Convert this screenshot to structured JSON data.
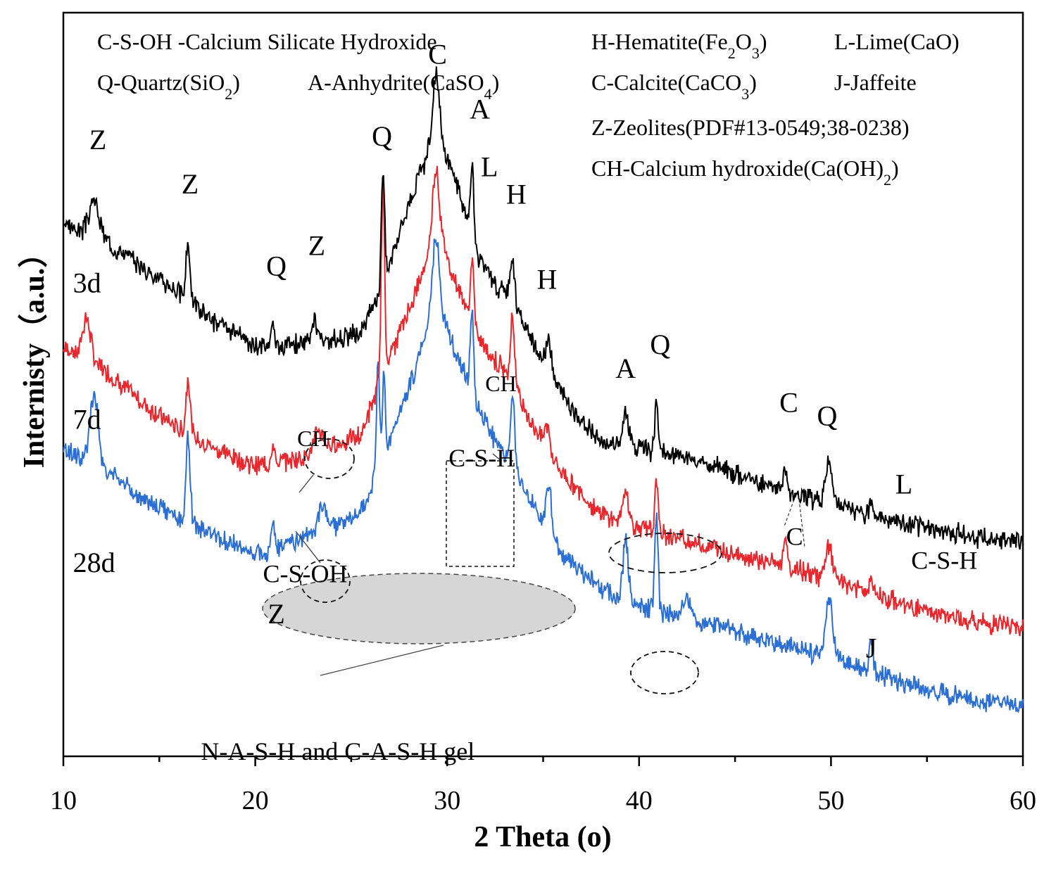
{
  "chart_data": {
    "type": "line",
    "title": "",
    "xlabel": "2 Theta (o)",
    "ylabel": "Internisty（a.u.）",
    "xlim": [
      10,
      60
    ],
    "x_ticks": [
      "10",
      "20",
      "30",
      "40",
      "50",
      "60"
    ],
    "legend_lines": [
      {
        "id": "csoh",
        "parts": [
          {
            "t": "C-S-OH -Calcium Silicate Hydroxide"
          }
        ]
      },
      {
        "id": "hematite",
        "parts": [
          {
            "t": "H-Hematite(Fe"
          },
          {
            "t": "2",
            "sub": true
          },
          {
            "t": "O"
          },
          {
            "t": "3",
            "sub": true
          },
          {
            "t": ")"
          }
        ]
      },
      {
        "id": "lime",
        "parts": [
          {
            "t": "L-Lime(CaO)"
          }
        ]
      },
      {
        "id": "quartz",
        "parts": [
          {
            "t": "Q-Quartz(SiO"
          },
          {
            "t": "2",
            "sub": true
          },
          {
            "t": ")"
          }
        ]
      },
      {
        "id": "anhydrite",
        "parts": [
          {
            "t": "A-Anhydrite(CaSO"
          },
          {
            "t": "4",
            "sub": true
          },
          {
            "t": ")"
          }
        ]
      },
      {
        "id": "calcite",
        "parts": [
          {
            "t": "C-Calcite(CaCO"
          },
          {
            "t": "3",
            "sub": true
          },
          {
            "t": ")"
          }
        ]
      },
      {
        "id": "jaffeite",
        "parts": [
          {
            "t": "J-Jaffeite"
          }
        ]
      },
      {
        "id": "zeolites",
        "parts": [
          {
            "t": "Z-Zeolites(PDF#13-0549;38-0238)"
          }
        ]
      },
      {
        "id": "ch",
        "parts": [
          {
            "t": "CH-Calcium hydroxide(Ca(OH)"
          },
          {
            "t": "2",
            "sub": true
          },
          {
            "t": ")"
          }
        ]
      }
    ],
    "series": [
      {
        "name": "3d",
        "color": "#000000",
        "seed": 3,
        "noise": 0.22,
        "baseline": [
          [
            10,
            5.2
          ],
          [
            12,
            5.0
          ],
          [
            14,
            4.6
          ],
          [
            16,
            4.2
          ],
          [
            18,
            3.75
          ],
          [
            20,
            3.4
          ],
          [
            22,
            3.45
          ],
          [
            24,
            3.5
          ],
          [
            25.5,
            3.6
          ],
          [
            26.5,
            4.2
          ],
          [
            27.5,
            5.1
          ],
          [
            28.5,
            5.9
          ],
          [
            29.5,
            6.5
          ],
          [
            30.5,
            5.8
          ],
          [
            31.5,
            4.8
          ],
          [
            32.5,
            4.3
          ],
          [
            33.5,
            4.1
          ],
          [
            34,
            3.7
          ],
          [
            35,
            3.2
          ],
          [
            36,
            2.7
          ],
          [
            37,
            2.3
          ],
          [
            38,
            2.0
          ],
          [
            40,
            1.9
          ],
          [
            42,
            1.8
          ],
          [
            44,
            1.65
          ],
          [
            46,
            1.45
          ],
          [
            48,
            1.25
          ],
          [
            50,
            1.1
          ],
          [
            52,
            0.95
          ],
          [
            54,
            0.8
          ],
          [
            56,
            0.7
          ],
          [
            58,
            0.6
          ],
          [
            60,
            0.55
          ]
        ],
        "peaks": [
          [
            11.6,
            0.5,
            0.35
          ],
          [
            16.5,
            0.85,
            0.15
          ],
          [
            20.9,
            0.35,
            0.12
          ],
          [
            23.1,
            0.3,
            0.2
          ],
          [
            26.65,
            1.7,
            0.12
          ],
          [
            29.4,
            0.9,
            0.25
          ],
          [
            31.3,
            1.1,
            0.12
          ],
          [
            33.4,
            0.6,
            0.15
          ],
          [
            35.3,
            0.45,
            0.2
          ],
          [
            39.3,
            0.55,
            0.2
          ],
          [
            40.9,
            0.75,
            0.12
          ],
          [
            47.6,
            0.35,
            0.12
          ],
          [
            49.9,
            0.6,
            0.25
          ],
          [
            52.1,
            0.25,
            0.12
          ]
        ]
      },
      {
        "name": "7d",
        "color": "#e8262b",
        "seed": 7,
        "noise": 0.22,
        "baseline": [
          [
            10,
            3.4
          ],
          [
            12,
            3.1
          ],
          [
            14,
            2.6
          ],
          [
            16,
            2.2
          ],
          [
            18,
            1.9
          ],
          [
            20,
            1.65
          ],
          [
            22,
            1.75
          ],
          [
            24,
            1.95
          ],
          [
            25.5,
            2.1
          ],
          [
            26.5,
            2.9
          ],
          [
            27.5,
            3.6
          ],
          [
            28.5,
            4.3
          ],
          [
            29.5,
            5.1
          ],
          [
            30.5,
            4.3
          ],
          [
            31.5,
            3.6
          ],
          [
            32.5,
            3.2
          ],
          [
            33.5,
            2.9
          ],
          [
            34,
            2.5
          ],
          [
            35,
            2.0
          ],
          [
            36,
            1.55
          ],
          [
            38,
            0.95
          ],
          [
            40,
            0.75
          ],
          [
            42,
            0.6
          ],
          [
            44,
            0.45
          ],
          [
            46,
            0.3
          ],
          [
            48,
            0.15
          ],
          [
            50,
            0.0
          ],
          [
            52,
            -0.2
          ],
          [
            54,
            -0.4
          ],
          [
            56,
            -0.55
          ],
          [
            58,
            -0.65
          ],
          [
            60,
            -0.7
          ]
        ],
        "peaks": [
          [
            11.2,
            0.6,
            0.3
          ],
          [
            16.5,
            0.85,
            0.15
          ],
          [
            20.9,
            0.3,
            0.12
          ],
          [
            23.3,
            0.3,
            0.3
          ],
          [
            26.65,
            2.8,
            0.12
          ],
          [
            29.4,
            1.0,
            0.25
          ],
          [
            31.3,
            1.0,
            0.12
          ],
          [
            33.4,
            0.9,
            0.15
          ],
          [
            35.2,
            0.35,
            0.2
          ],
          [
            39.3,
            0.5,
            0.2
          ],
          [
            40.9,
            0.75,
            0.12
          ],
          [
            47.6,
            0.45,
            0.12
          ],
          [
            49.9,
            0.45,
            0.25
          ],
          [
            52.1,
            0.2,
            0.12
          ]
        ]
      },
      {
        "name": "28d",
        "color": "#2b6fd4",
        "seed": 28,
        "noise": 0.22,
        "baseline": [
          [
            10,
            1.9
          ],
          [
            12,
            1.65
          ],
          [
            14,
            1.2
          ],
          [
            16,
            0.9
          ],
          [
            18,
            0.6
          ],
          [
            20,
            0.35
          ],
          [
            22,
            0.55
          ],
          [
            24,
            0.75
          ],
          [
            25.5,
            0.95
          ],
          [
            26.5,
            1.6
          ],
          [
            27.5,
            2.4
          ],
          [
            28.5,
            3.2
          ],
          [
            29.5,
            4.0
          ],
          [
            30.5,
            3.3
          ],
          [
            31.5,
            2.6
          ],
          [
            32.5,
            2.0
          ],
          [
            33.5,
            1.6
          ],
          [
            34,
            1.3
          ],
          [
            35,
            0.8
          ],
          [
            36,
            0.35
          ],
          [
            38,
            -0.15
          ],
          [
            40,
            -0.4
          ],
          [
            42,
            -0.55
          ],
          [
            44,
            -0.7
          ],
          [
            46,
            -0.85
          ],
          [
            48,
            -1.0
          ],
          [
            50,
            -1.15
          ],
          [
            52,
            -1.35
          ],
          [
            54,
            -1.55
          ],
          [
            56,
            -1.7
          ],
          [
            58,
            -1.8
          ],
          [
            60,
            -1.85
          ]
        ],
        "peaks": [
          [
            11.6,
            1.0,
            0.3
          ],
          [
            16.5,
            1.25,
            0.15
          ],
          [
            20.9,
            0.4,
            0.12
          ],
          [
            23.5,
            0.35,
            0.3
          ],
          [
            26.4,
            1.6,
            0.12
          ],
          [
            26.7,
            1.3,
            0.1
          ],
          [
            29.4,
            1.1,
            0.25
          ],
          [
            31.3,
            1.2,
            0.12
          ],
          [
            33.4,
            1.1,
            0.15
          ],
          [
            35.3,
            0.75,
            0.2
          ],
          [
            39.3,
            0.85,
            0.2
          ],
          [
            40.9,
            1.45,
            0.12
          ],
          [
            42.5,
            0.3,
            0.3
          ],
          [
            49.9,
            0.85,
            0.25
          ],
          [
            52.1,
            0.45,
            0.12
          ]
        ]
      }
    ],
    "sample_labels": [
      {
        "text": "3d",
        "x": 10.5,
        "y": 4.2
      },
      {
        "text": "7d",
        "x": 10.5,
        "y": 2.2
      },
      {
        "text": "28d",
        "x": 10.5,
        "y": 0.1
      }
    ],
    "peak_labels": [
      {
        "text": "Z",
        "x": 11.8,
        "y": 6.3
      },
      {
        "text": "Z",
        "x": 16.6,
        "y": 5.65
      },
      {
        "text": "Q",
        "x": 21.1,
        "y": 4.45
      },
      {
        "text": "Z",
        "x": 23.2,
        "y": 4.75
      },
      {
        "text": "Q",
        "x": 26.6,
        "y": 6.35
      },
      {
        "text": "C",
        "x": 29.5,
        "y": 7.55
      },
      {
        "text": "A",
        "x": 31.7,
        "y": 6.75
      },
      {
        "text": "L",
        "x": 32.2,
        "y": 5.9
      },
      {
        "text": "H",
        "x": 33.6,
        "y": 5.5
      },
      {
        "text": "H",
        "x": 35.2,
        "y": 4.25
      },
      {
        "text": "A",
        "x": 39.3,
        "y": 2.95
      },
      {
        "text": "Q",
        "x": 41.1,
        "y": 3.3
      },
      {
        "text": "C",
        "x": 47.8,
        "y": 2.45
      },
      {
        "text": "Q",
        "x": 49.8,
        "y": 2.25
      },
      {
        "text": "L",
        "x": 53.8,
        "y": 1.25
      },
      {
        "text": "J",
        "x": 52.1,
        "y": -1.15
      },
      {
        "text": "Z",
        "x": 21.1,
        "y": -0.65
      }
    ],
    "annotations": [
      {
        "id": "ch-7d",
        "text": "CH",
        "x": 23.0,
        "y": 1.95,
        "size": "small"
      },
      {
        "id": "ch-33",
        "text": "CH",
        "x": 32.8,
        "y": 2.75,
        "size": "small"
      },
      {
        "id": "csoh",
        "text": "C-S-OH",
        "x": 22.6,
        "y": -0.05,
        "size": "large"
      },
      {
        "id": "csh-box",
        "text": "C-S-H",
        "x": 31.8,
        "y": 1.65,
        "size": "large"
      },
      {
        "id": "csh-right",
        "text": "C-S-H",
        "x": 55.9,
        "y": 0.15,
        "size": "large"
      },
      {
        "id": "c-7d",
        "text": "C",
        "x": 48.1,
        "y": 0.5,
        "size": "large"
      },
      {
        "id": "gel",
        "text": "N-A-S-H and C-A-S-H gel",
        "x": 24.3,
        "y": -2.65,
        "size": "large"
      }
    ]
  }
}
